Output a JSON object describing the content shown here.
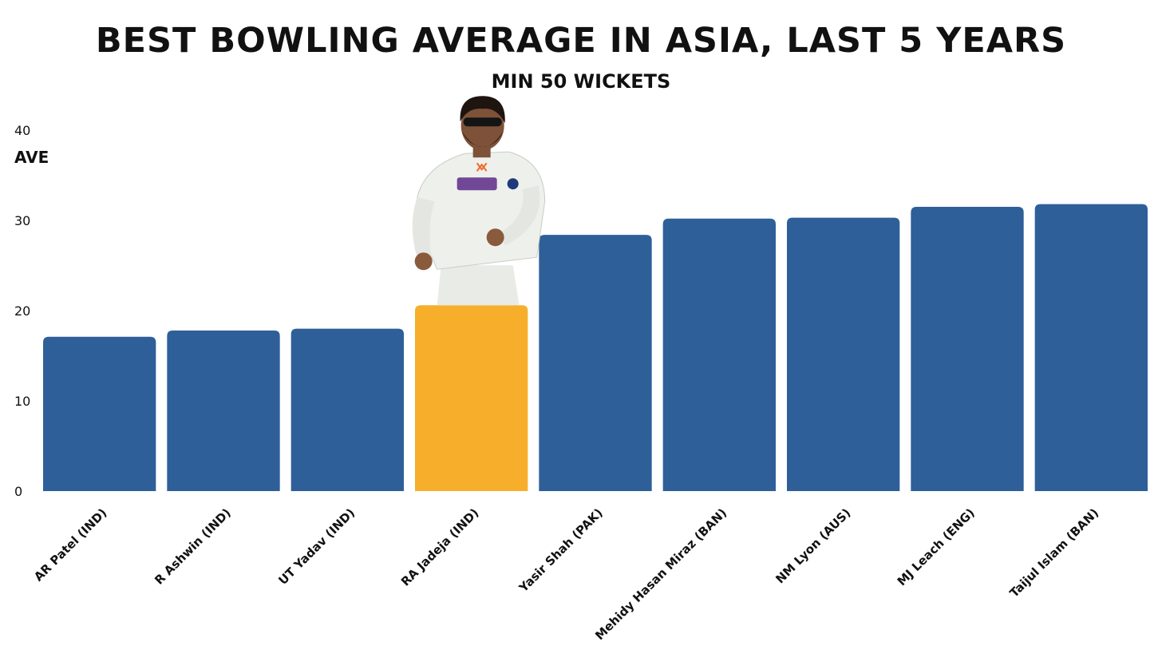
{
  "chart_data": {
    "type": "bar",
    "title": "Best bowling average in Asia, last 5 years",
    "subtitle": "Min 50 wickets",
    "ylabel": "AVE",
    "xlabel": "",
    "ylim": [
      0,
      40
    ],
    "yticks": [
      0,
      10,
      20,
      30,
      40
    ],
    "grid": false,
    "categories": [
      "AR Patel (IND)",
      "R Ashwin (IND)",
      "UT Yadav (IND)",
      "RA Jadeja (IND)",
      "Yasir Shah (PAK)",
      "Mehidy Hasan Miraz (BAN)",
      "NM Lyon (AUS)",
      "MJ Leach (ENG)",
      "Taijul Islam (BAN)"
    ],
    "values": [
      17.1,
      17.8,
      18.0,
      20.6,
      28.4,
      30.2,
      30.3,
      31.5,
      31.8
    ],
    "highlight_index": 3,
    "colors": {
      "bar": "#2e5f99",
      "highlight": "#f7af2b",
      "photo_jersey": "#eef0ec"
    }
  }
}
